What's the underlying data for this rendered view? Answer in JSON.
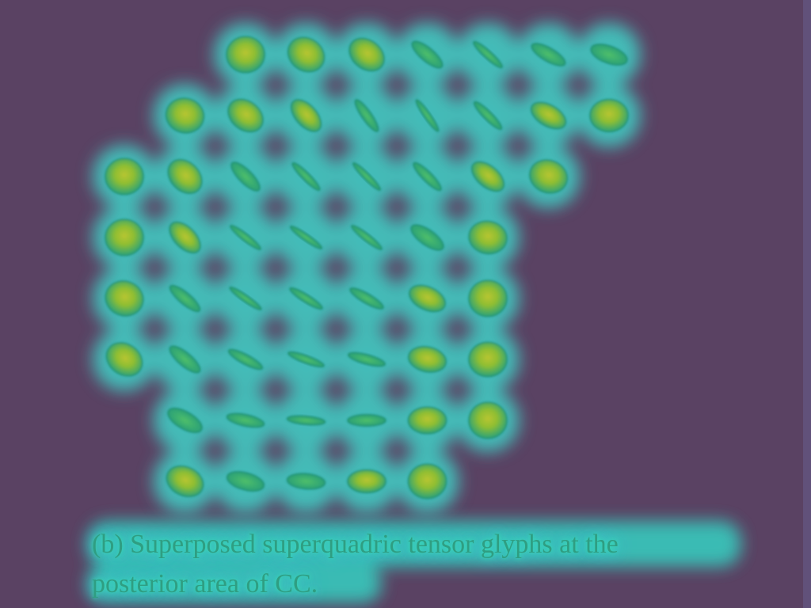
{
  "figure": {
    "caption_lines": [
      "(b) Superposed superquadric tensor glyphs at the",
      "posterior area of CC."
    ],
    "colors": {
      "background": "#5a4263",
      "halo_outer": "#4f8ef0",
      "halo_mid": "#39c8c9",
      "glyph_fill": "#2fb07a",
      "glyph_core": "#a9c62d",
      "caption_text": "#2f9e82"
    }
  },
  "glyph_grid": {
    "rows": [
      [
        {
          "col": 2,
          "shape": "round",
          "angle": 0,
          "elong": 0.95
        },
        {
          "col": 3,
          "shape": "round",
          "angle": 35,
          "elong": 0.85
        },
        {
          "col": 4,
          "shape": "round",
          "angle": 38,
          "elong": 0.75
        },
        {
          "col": 5,
          "shape": "rod",
          "angle": 40,
          "elong": 0.35
        },
        {
          "col": 6,
          "shape": "rod",
          "angle": 42,
          "elong": 0.2
        },
        {
          "col": 7,
          "shape": "rod",
          "angle": 30,
          "elong": 0.35
        },
        {
          "col": 8,
          "shape": "rod",
          "angle": 20,
          "elong": 0.45
        }
      ],
      [
        {
          "col": 1,
          "shape": "round",
          "angle": 15,
          "elong": 0.9
        },
        {
          "col": 2,
          "shape": "round",
          "angle": 38,
          "elong": 0.75
        },
        {
          "col": 3,
          "shape": "round",
          "angle": 48,
          "elong": 0.55
        },
        {
          "col": 4,
          "shape": "rod",
          "angle": 55,
          "elong": 0.25
        },
        {
          "col": 5,
          "shape": "rod",
          "angle": 55,
          "elong": 0.12
        },
        {
          "col": 6,
          "shape": "rod",
          "angle": 45,
          "elong": 0.22
        },
        {
          "col": 7,
          "shape": "round",
          "angle": 30,
          "elong": 0.55
        },
        {
          "col": 8,
          "shape": "round",
          "angle": 0,
          "elong": 0.85
        }
      ],
      [
        {
          "col": 0,
          "shape": "round",
          "angle": 0,
          "elong": 0.95
        },
        {
          "col": 1,
          "shape": "round",
          "angle": 45,
          "elong": 0.75
        },
        {
          "col": 2,
          "shape": "rod",
          "angle": 45,
          "elong": 0.35
        },
        {
          "col": 3,
          "shape": "rod",
          "angle": 45,
          "elong": 0.2
        },
        {
          "col": 4,
          "shape": "rod",
          "angle": 45,
          "elong": 0.15
        },
        {
          "col": 5,
          "shape": "rod",
          "angle": 45,
          "elong": 0.25
        },
        {
          "col": 6,
          "shape": "round",
          "angle": 40,
          "elong": 0.55
        },
        {
          "col": 7,
          "shape": "round",
          "angle": 20,
          "elong": 0.85
        }
      ],
      [
        {
          "col": 0,
          "shape": "round",
          "angle": 0,
          "elong": 0.95
        },
        {
          "col": 1,
          "shape": "round",
          "angle": 45,
          "elong": 0.55
        },
        {
          "col": 2,
          "shape": "rod",
          "angle": 38,
          "elong": 0.18
        },
        {
          "col": 3,
          "shape": "rod",
          "angle": 35,
          "elong": 0.15
        },
        {
          "col": 4,
          "shape": "rod",
          "angle": 38,
          "elong": 0.18
        },
        {
          "col": 5,
          "shape": "rod",
          "angle": 35,
          "elong": 0.4
        },
        {
          "col": 6,
          "shape": "round",
          "angle": 10,
          "elong": 0.85
        }
      ],
      [
        {
          "col": 0,
          "shape": "round",
          "angle": 20,
          "elong": 0.9
        },
        {
          "col": 1,
          "shape": "rod",
          "angle": 40,
          "elong": 0.3
        },
        {
          "col": 2,
          "shape": "rod",
          "angle": 35,
          "elong": 0.15
        },
        {
          "col": 3,
          "shape": "rod",
          "angle": 32,
          "elong": 0.2
        },
        {
          "col": 4,
          "shape": "rod",
          "angle": 30,
          "elong": 0.25
        },
        {
          "col": 5,
          "shape": "round",
          "angle": 25,
          "elong": 0.6
        },
        {
          "col": 6,
          "shape": "round",
          "angle": 0,
          "elong": 0.95
        }
      ],
      [
        {
          "col": 0,
          "shape": "round",
          "angle": 35,
          "elong": 0.8
        },
        {
          "col": 1,
          "shape": "rod",
          "angle": 40,
          "elong": 0.35
        },
        {
          "col": 2,
          "shape": "rod",
          "angle": 28,
          "elong": 0.25
        },
        {
          "col": 3,
          "shape": "rod",
          "angle": 20,
          "elong": 0.2
        },
        {
          "col": 4,
          "shape": "rod",
          "angle": 15,
          "elong": 0.25
        },
        {
          "col": 5,
          "shape": "round",
          "angle": 12,
          "elong": 0.65
        },
        {
          "col": 6,
          "shape": "round",
          "angle": 0,
          "elong": 0.9
        }
      ],
      [
        {
          "col": 1,
          "shape": "rod",
          "angle": 30,
          "elong": 0.45
        },
        {
          "col": 2,
          "shape": "rod",
          "angle": 12,
          "elong": 0.3
        },
        {
          "col": 3,
          "shape": "rod",
          "angle": 5,
          "elong": 0.22
        },
        {
          "col": 4,
          "shape": "rod",
          "angle": 0,
          "elong": 0.3
        },
        {
          "col": 5,
          "shape": "round",
          "angle": 0,
          "elong": 0.7
        },
        {
          "col": 6,
          "shape": "round",
          "angle": 0,
          "elong": 0.95
        }
      ],
      [
        {
          "col": 1,
          "shape": "round",
          "angle": 25,
          "elong": 0.75
        },
        {
          "col": 2,
          "shape": "rod",
          "angle": 15,
          "elong": 0.45
        },
        {
          "col": 3,
          "shape": "rod",
          "angle": 5,
          "elong": 0.4
        },
        {
          "col": 4,
          "shape": "round",
          "angle": 0,
          "elong": 0.6
        },
        {
          "col": 5,
          "shape": "round",
          "angle": 0,
          "elong": 0.9
        }
      ]
    ]
  }
}
